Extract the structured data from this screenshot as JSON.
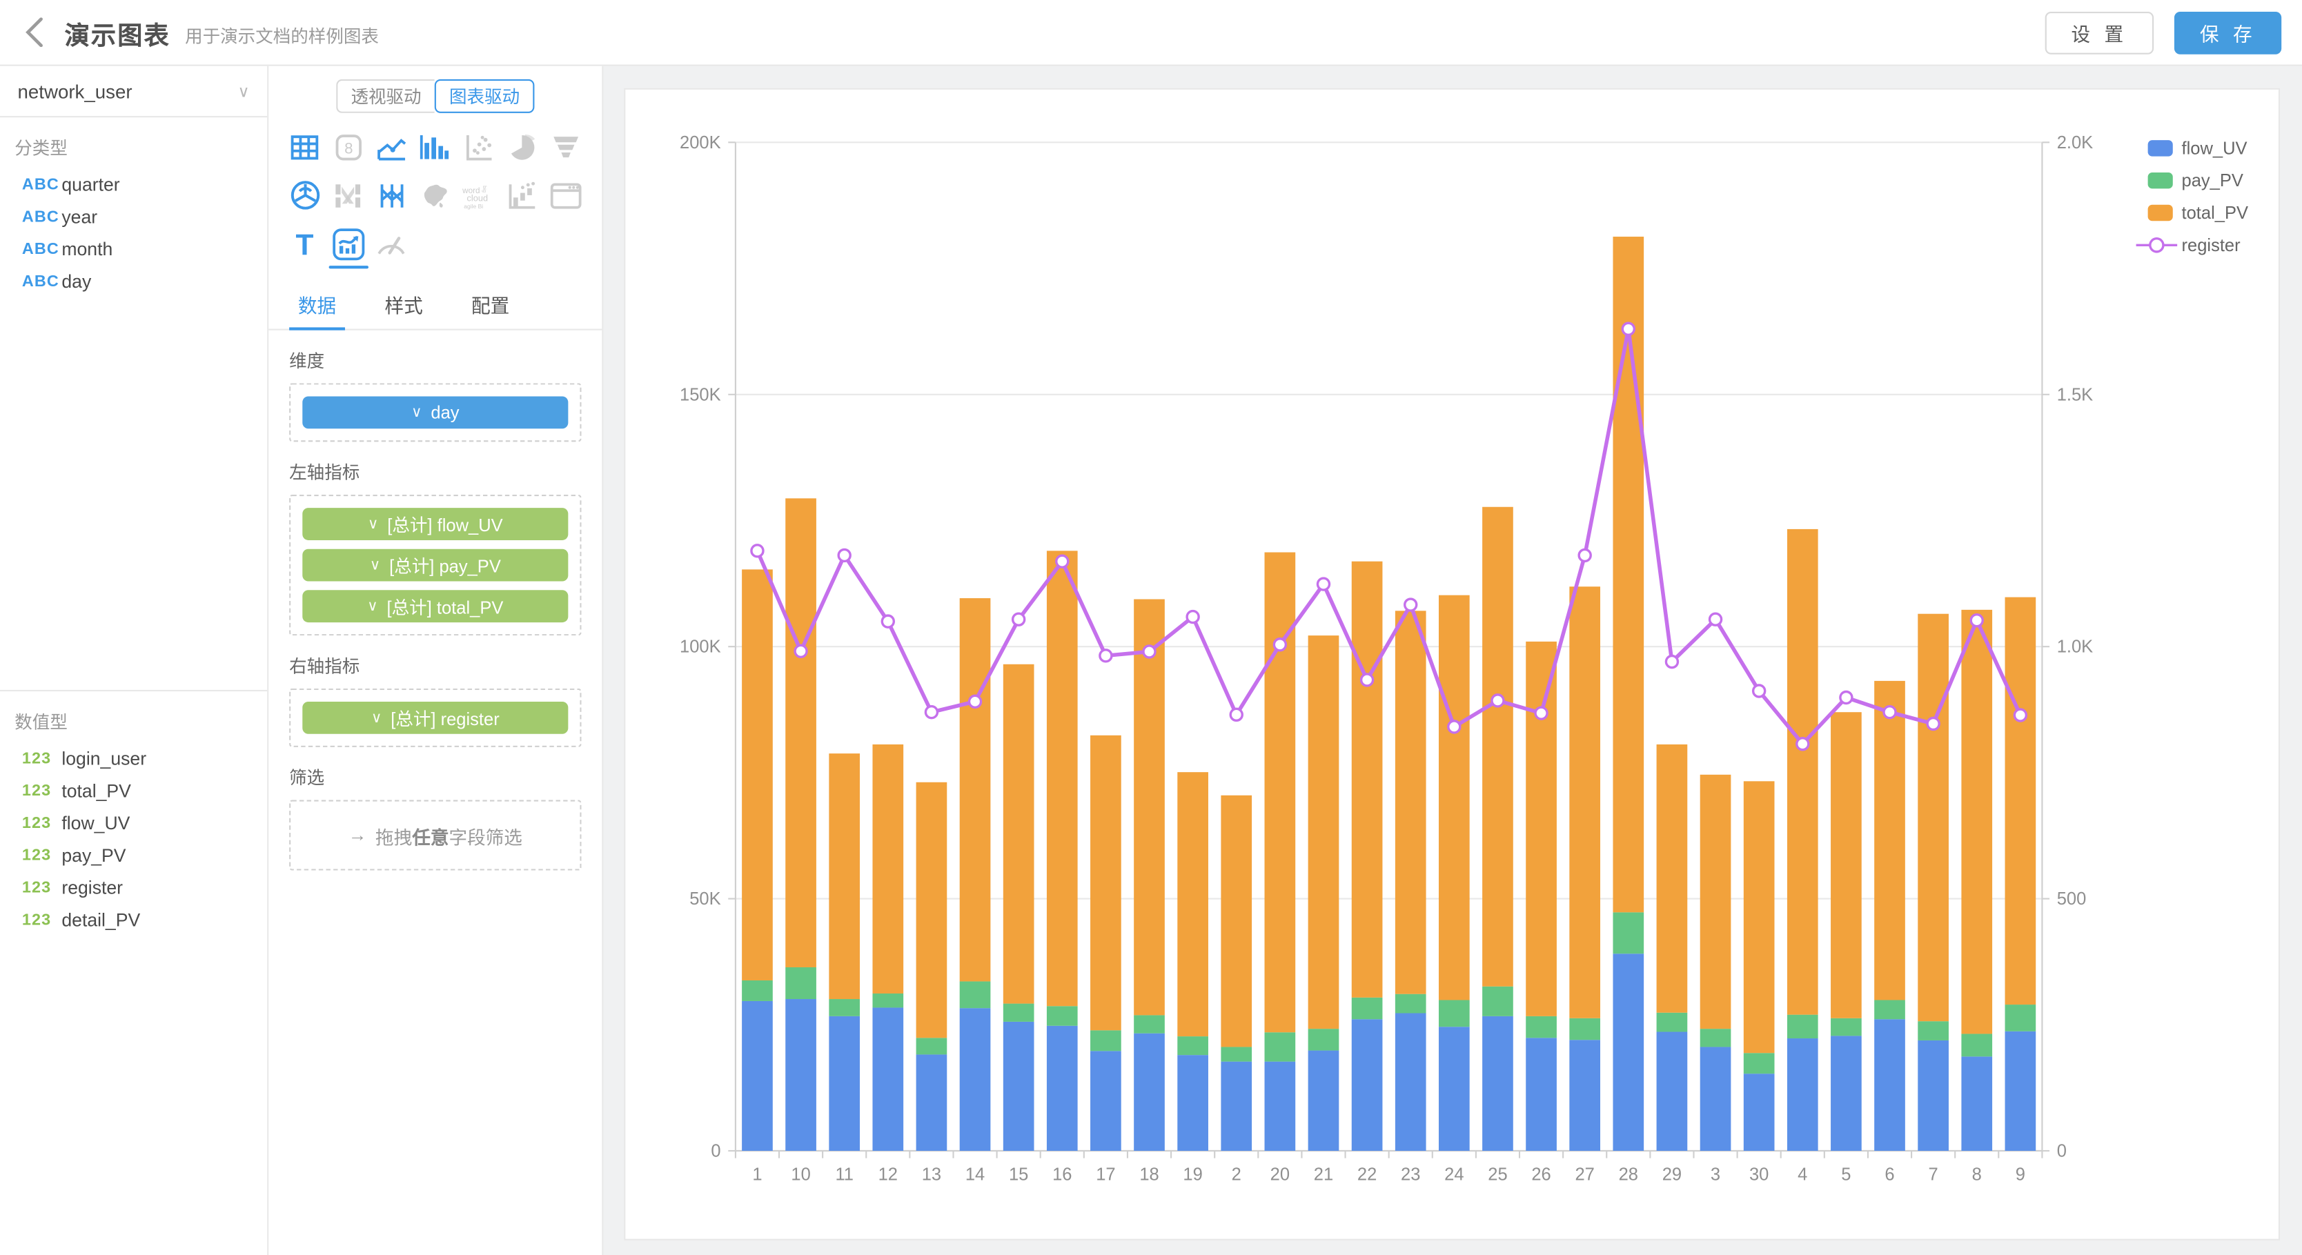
{
  "header": {
    "title": "演示图表",
    "subtitle": "用于演示文档的样例图表",
    "settings_label": "设 置",
    "save_label": "保 存",
    "save_color": "#459cdf"
  },
  "sidebar": {
    "source_select": "network_user",
    "categorical_label": "分类型",
    "categorical_badge": "ABC",
    "categorical_fields": [
      "quarter",
      "year",
      "month",
      "day"
    ],
    "numeric_label": "数值型",
    "numeric_badge": "123",
    "numeric_fields": [
      "login_user",
      "total_PV",
      "flow_UV",
      "pay_PV",
      "register",
      "detail_PV"
    ]
  },
  "panel": {
    "mode_toggle": [
      {
        "label": "透视驱动",
        "active": false
      },
      {
        "label": "图表驱动",
        "active": true
      }
    ],
    "chart_icons": [
      {
        "name": "table-chart-icon",
        "active": true
      },
      {
        "name": "kpi-card-icon",
        "active": false
      },
      {
        "name": "line-chart-icon",
        "active": true
      },
      {
        "name": "bar-chart-icon",
        "active": true
      },
      {
        "name": "scatter-chart-icon",
        "active": false
      },
      {
        "name": "pie-chart-icon",
        "active": false
      },
      {
        "name": "funnel-chart-icon",
        "active": false
      },
      {
        "name": "radar-chart-icon",
        "active": true
      },
      {
        "name": "sankey-chart-icon",
        "active": false
      },
      {
        "name": "parallel-chart-icon",
        "active": true
      },
      {
        "name": "map-chart-icon",
        "active": false
      },
      {
        "name": "wordcloud-chart-icon",
        "active": false
      },
      {
        "name": "waterfall-chart-icon",
        "active": false
      },
      {
        "name": "iframe-chart-icon",
        "active": false
      },
      {
        "name": "text-chart-icon",
        "active": true
      },
      {
        "name": "dual-axis-chart-icon",
        "active": true,
        "selected": true
      },
      {
        "name": "gauge-chart-icon",
        "active": false
      }
    ],
    "tabs": [
      {
        "label": "数据",
        "active": true
      },
      {
        "label": "样式",
        "active": false
      },
      {
        "label": "配置",
        "active": false
      }
    ],
    "chip_chevron": "∨",
    "sections": {
      "dimension_label": "维度",
      "dimension_chips": [
        {
          "label": "day",
          "color": "#4da0e2"
        }
      ],
      "left_axis_label": "左轴指标",
      "left_axis_chips": [
        {
          "label": "[总计] flow_UV",
          "color": "#a2ca6d"
        },
        {
          "label": "[总计] pay_PV",
          "color": "#a2ca6d"
        },
        {
          "label": "[总计] total_PV",
          "color": "#a2ca6d"
        }
      ],
      "right_axis_label": "右轴指标",
      "right_axis_chips": [
        {
          "label": "[总计] register",
          "color": "#a2ca6d"
        }
      ],
      "filter_label": "筛选",
      "filter_arrow": "→",
      "filter_text_prefix": "拖拽",
      "filter_text_bold": "任意",
      "filter_text_suffix": "字段筛选"
    }
  },
  "chart_data": {
    "type": "bar",
    "subtype": "dual-axis stacked bar + line",
    "categories": [
      "1",
      "10",
      "11",
      "12",
      "13",
      "14",
      "15",
      "16",
      "17",
      "18",
      "19",
      "2",
      "20",
      "21",
      "22",
      "23",
      "24",
      "25",
      "26",
      "27",
      "28",
      "29",
      "3",
      "30",
      "4",
      "5",
      "6",
      "7",
      "8",
      "9"
    ],
    "series": [
      {
        "name": "flow_UV",
        "type": "bar",
        "stack": true,
        "axis": "left",
        "color": "#5b90e8",
        "values": [
          29700,
          30100,
          26700,
          28400,
          19100,
          28300,
          25600,
          24800,
          19800,
          23300,
          19000,
          17700,
          17700,
          19900,
          26100,
          27300,
          24600,
          26700,
          22400,
          22000,
          39100,
          23600,
          20600,
          15300,
          22300,
          22800,
          26100,
          21900,
          18700,
          23700
        ]
      },
      {
        "name": "pay_PV",
        "type": "bar",
        "stack": true,
        "axis": "left",
        "color": "#63c683",
        "values": [
          4100,
          6300,
          3400,
          2800,
          3300,
          5300,
          3600,
          3900,
          4100,
          3600,
          3700,
          2900,
          5800,
          4300,
          4300,
          3800,
          5300,
          5900,
          4300,
          4300,
          8200,
          3800,
          3600,
          4100,
          4700,
          3500,
          3800,
          3800,
          4500,
          5300
        ]
      },
      {
        "name": "total_PV",
        "type": "bar",
        "stack": true,
        "axis": "left",
        "color": "#f2a23c",
        "values": [
          81500,
          93000,
          48700,
          49400,
          50700,
          76000,
          67300,
          90300,
          58500,
          82500,
          52400,
          49900,
          95200,
          78000,
          86500,
          76000,
          80300,
          95100,
          74300,
          85600,
          134000,
          53200,
          50400,
          53900,
          96300,
          60700,
          63300,
          80800,
          84100,
          80800
        ]
      },
      {
        "name": "register",
        "type": "line",
        "axis": "right",
        "color": "#c570ec",
        "values": [
          1190,
          991,
          1181,
          1050,
          870,
          891,
          1054,
          1169,
          982,
          990,
          1059,
          865,
          1004,
          1124,
          934,
          1083,
          841,
          893,
          868,
          1181,
          1630,
          970,
          1054,
          912,
          807,
          899,
          870,
          847,
          1052,
          864
        ]
      }
    ],
    "left_axis": {
      "min": 0,
      "max": 200000,
      "tick_step": 50000,
      "tick_labels": [
        "0",
        "50K",
        "100K",
        "150K",
        "200K"
      ]
    },
    "right_axis": {
      "min": 0,
      "max": 2000,
      "tick_step": 500,
      "tick_labels": [
        "0",
        "500",
        "1.0K",
        "1.5K",
        "2.0K"
      ]
    },
    "grid": true,
    "legend_position": "top-right",
    "legend": [
      "flow_UV",
      "pay_PV",
      "total_PV",
      "register"
    ]
  }
}
